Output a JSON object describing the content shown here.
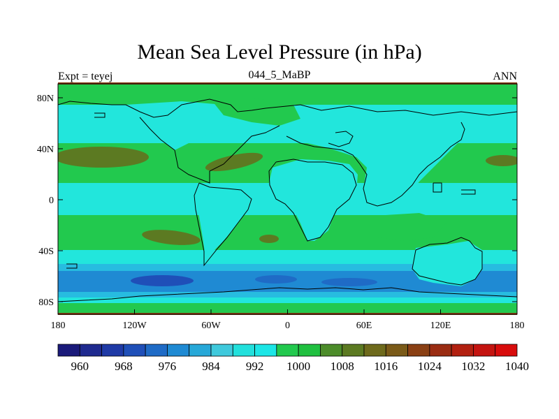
{
  "title": "Mean Sea Level Pressure (in hPa)",
  "left_label": "Expt = teyej",
  "center_label": "044_5_MaBP",
  "right_label": "ANN",
  "lat_ticks": [
    "80N",
    "40N",
    "0",
    "40S",
    "80S"
  ],
  "lon_ticks": [
    "180",
    "120W",
    "60W",
    "0",
    "60E",
    "120E",
    "180"
  ],
  "colorbar": {
    "levels": [
      "960",
      "968",
      "976",
      "984",
      "992",
      "1000",
      "1008",
      "1016",
      "1024",
      "1032",
      "1040"
    ],
    "colors": [
      "#1a1a7a",
      "#1f2a8f",
      "#1f3aa6",
      "#1f4fb8",
      "#1f6bc6",
      "#1f8ad3",
      "#27a8d8",
      "#3fc9dc",
      "#22e0dc",
      "#1ce6e6",
      "#22c94e",
      "#20c040",
      "#4c8c2a",
      "#5c7a22",
      "#6e6a1c",
      "#7a5a18",
      "#8a4014",
      "#9a2c12",
      "#b22010",
      "#c41410",
      "#d80c0c"
    ]
  },
  "map_colors": {
    "green": "#22c94e",
    "olive": "#5c7a22",
    "cyan": "#22e6dc",
    "light_blue": "#27bce0",
    "blue": "#1f8ad3",
    "deep_blue": "#1f4fb8",
    "border_brown": "#8a4014"
  }
}
